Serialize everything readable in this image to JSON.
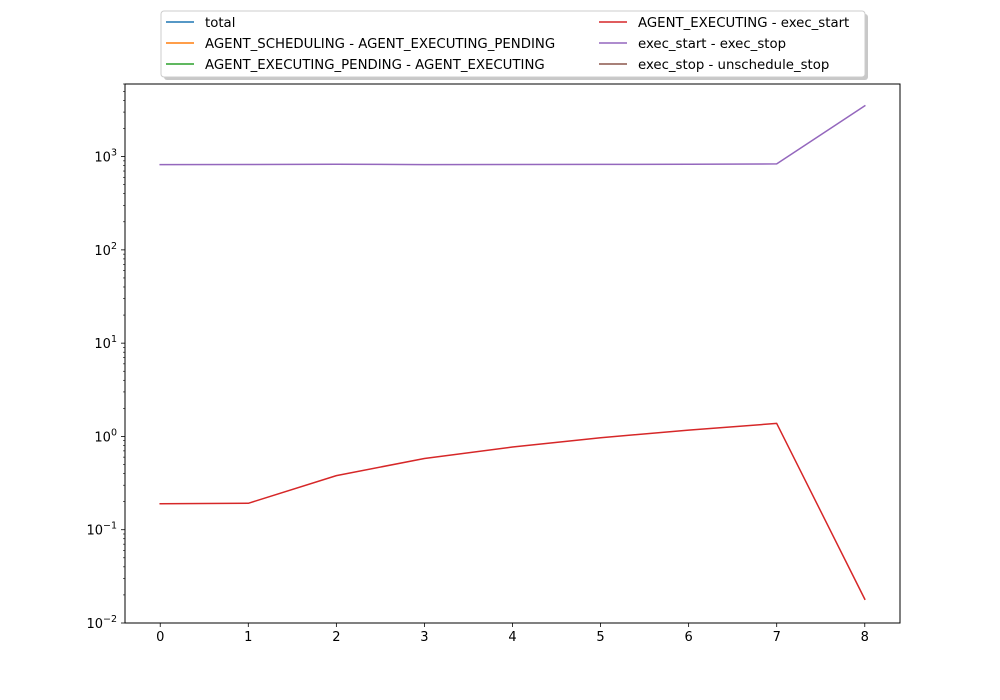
{
  "chart_data": {
    "type": "line",
    "title": "",
    "xlabel": "",
    "ylabel": "",
    "x": [
      0,
      1,
      2,
      3,
      4,
      5,
      6,
      7,
      8
    ],
    "xlim": [
      -0.4,
      8.4
    ],
    "ylim": [
      0.01,
      6000
    ],
    "y_scale": "log",
    "grid": false,
    "x_ticks": [
      "0",
      "1",
      "2",
      "3",
      "4",
      "5",
      "6",
      "7",
      "8"
    ],
    "y_ticks": [
      {
        "value": 0.01,
        "base": "10",
        "exp": "−2"
      },
      {
        "value": 0.1,
        "base": "10",
        "exp": "−1"
      },
      {
        "value": 1,
        "base": "10",
        "exp": "0"
      },
      {
        "value": 10,
        "base": "10",
        "exp": "1"
      },
      {
        "value": 100,
        "base": "10",
        "exp": "2"
      },
      {
        "value": 1000,
        "base": "10",
        "exp": "3"
      }
    ],
    "legend": {
      "placement": "top-center, above plot, 2 columns, shadowed",
      "entries": [
        {
          "label": "total",
          "color": "#1f77b4"
        },
        {
          "label": "AGENT_SCHEDULING - AGENT_EXECUTING_PENDING",
          "color": "#ff7f0e"
        },
        {
          "label": "AGENT_EXECUTING_PENDING - AGENT_EXECUTING",
          "color": "#2ca02c"
        },
        {
          "label": "AGENT_EXECUTING - exec_start",
          "color": "#d62728"
        },
        {
          "label": "exec_start - exec_stop",
          "color": "#9467bd"
        },
        {
          "label": "exec_stop - unschedule_stop",
          "color": "#8c564b"
        }
      ]
    },
    "series": [
      {
        "name": "exec_start - exec_stop",
        "color": "#9467bd",
        "values": [
          820,
          822,
          828,
          820,
          823,
          824,
          826,
          835,
          3500
        ]
      },
      {
        "name": "AGENT_EXECUTING - exec_start",
        "color": "#d62728",
        "values": [
          0.19,
          0.192,
          0.38,
          0.58,
          0.77,
          0.97,
          1.17,
          1.38,
          0.018
        ]
      }
    ]
  }
}
